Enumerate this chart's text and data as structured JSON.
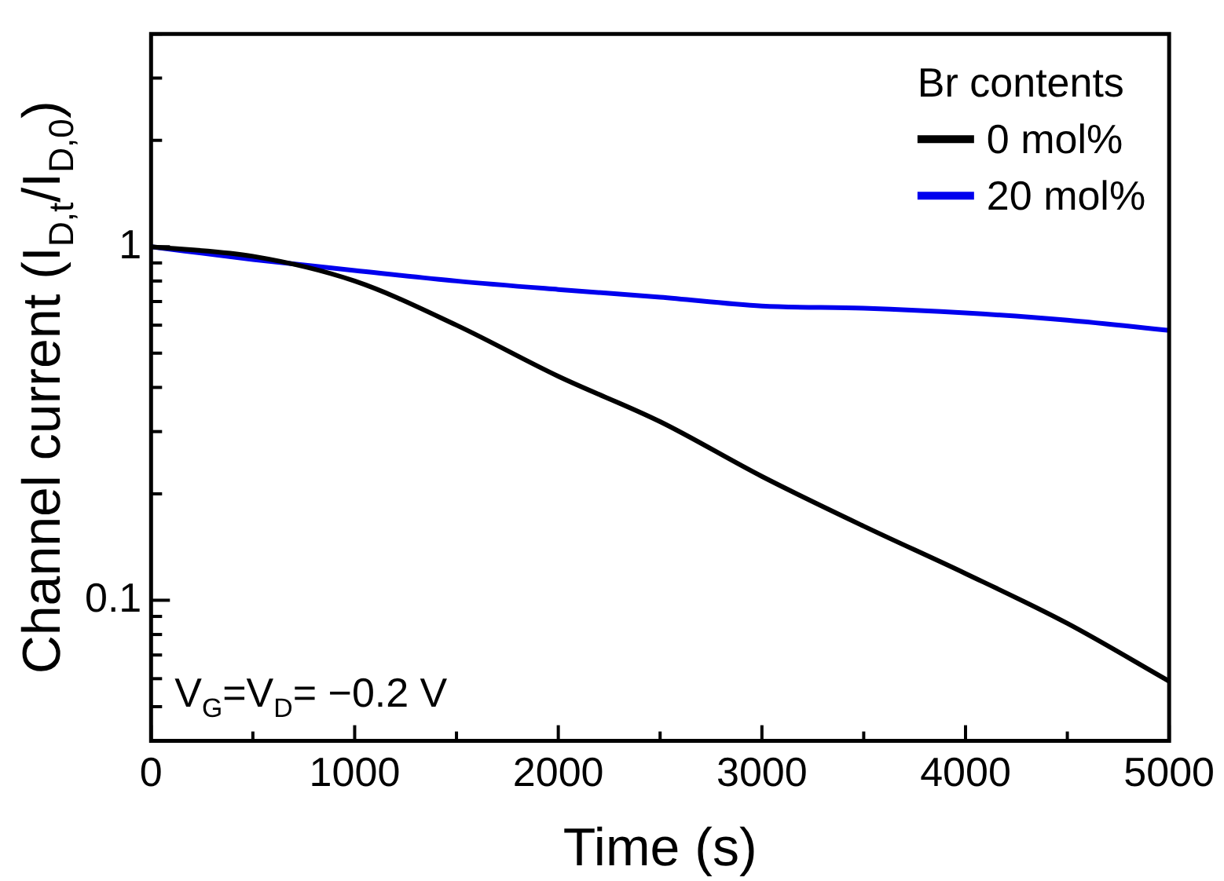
{
  "chart_data": {
    "type": "line",
    "xlabel": "Time (s)",
    "ylabel": "Channel current (I$_{D,t}$/I$_{D,0}$)",
    "legend_title": "Br contents",
    "legend": "top right",
    "grid": false,
    "log": "y",
    "marker": "none",
    "line_style": "solid",
    "x": [
      0,
      500,
      1000,
      1500,
      2000,
      2500,
      3000,
      3500,
      4000,
      4500,
      5000
    ],
    "xlim": [
      0,
      5000
    ],
    "xticks": [
      0,
      {
        "value": 500,
        "label": null
      },
      1000,
      {
        "value": 1500,
        "label": null
      },
      2000,
      {
        "value": 2500,
        "label": null
      },
      3000,
      {
        "value": 3500,
        "label": null
      },
      4000,
      {
        "value": 4500,
        "label": null
      },
      5000
    ],
    "ylim": [
      0.04,
      4
    ],
    "yticks": [
      {
        "value": 0.05,
        "label": null
      },
      {
        "value": 0.06,
        "label": null
      },
      {
        "value": 0.07,
        "label": null
      },
      {
        "value": 0.08,
        "label": null
      },
      {
        "value": 0.09,
        "label": null
      },
      0.1,
      {
        "value": 0.2,
        "label": null
      },
      {
        "value": 0.3,
        "label": null
      },
      {
        "value": 0.4,
        "label": null
      },
      {
        "value": 0.5,
        "label": null
      },
      {
        "value": 0.6,
        "label": null
      },
      {
        "value": 0.7,
        "label": null
      },
      {
        "value": 0.8,
        "label": null
      },
      {
        "value": 0.9,
        "label": null
      },
      1,
      {
        "value": 2,
        "label": null
      },
      {
        "value": 3,
        "label": null
      },
      {
        "value": 4,
        "label": null
      }
    ],
    "series": [
      {
        "name": "0 mol%",
        "color": "#000000",
        "values": [
          1,
          0.94,
          0.8,
          0.6,
          0.43,
          0.32,
          0.224,
          0.162,
          0.119,
          0.086,
          0.059
        ]
      },
      {
        "name": "20 mol%",
        "color": "#0000ee",
        "values": [
          1,
          0.92,
          0.857,
          0.8,
          0.757,
          0.72,
          0.68,
          0.67,
          0.65,
          0.62,
          0.58
        ]
      }
    ],
    "annotations": [
      "V$_{G}$=V$_{D}$= −0.2 V"
    ]
  }
}
